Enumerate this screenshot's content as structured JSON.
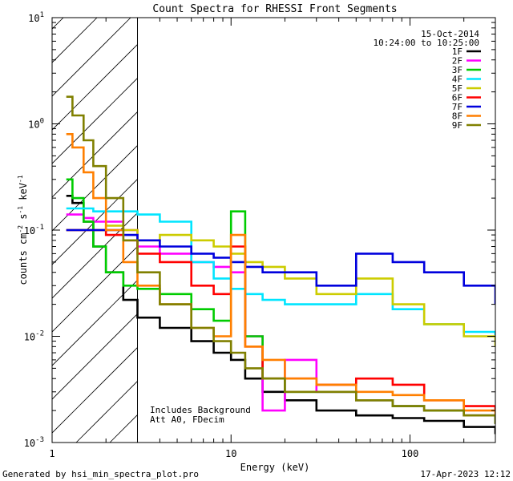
{
  "chart_data": {
    "type": "line",
    "title": "Count Spectra for RHESSI Front Segments",
    "date": "15-Oct-2014",
    "time_range": "10:24:00 to 10:25:00",
    "xlabel": "Energy (keV)",
    "ylabel": "counts cm-2 s-1 keV-1",
    "xscale": "log",
    "yscale": "log",
    "xlim": [
      1,
      300
    ],
    "ylim": [
      0.001,
      10
    ],
    "x_ticks": [
      {
        "value": 1,
        "label": "1"
      },
      {
        "value": 10,
        "label": "10"
      },
      {
        "value": 100,
        "label": "100"
      }
    ],
    "y_ticks": [
      {
        "value": 0.001,
        "mant": "10",
        "exp": "-3"
      },
      {
        "value": 0.01,
        "mant": "10",
        "exp": "-2"
      },
      {
        "value": 0.1,
        "mant": "10",
        "exp": "-1"
      },
      {
        "value": 1,
        "mant": "10",
        "exp": "0"
      },
      {
        "value": 10,
        "mant": "10",
        "exp": "1"
      }
    ],
    "hatched_region": [
      1,
      3
    ],
    "legend_position": "top-right",
    "annotations": [
      "Includes Background",
      "Att A0, FDecim"
    ],
    "series": [
      {
        "name": "1F",
        "color": "#000000",
        "x": [
          1.2,
          1.3,
          1.5,
          1.7,
          2,
          2.5,
          3,
          4,
          6,
          8,
          10,
          12,
          15,
          20,
          30,
          50,
          80,
          120,
          200,
          300
        ],
        "values": [
          0.21,
          0.18,
          0.12,
          0.07,
          0.04,
          0.022,
          0.015,
          0.012,
          0.009,
          0.007,
          0.006,
          0.004,
          0.003,
          0.0025,
          0.002,
          0.0018,
          0.0017,
          0.0016,
          0.0014,
          0.0012
        ]
      },
      {
        "name": "2F",
        "color": "#ff00ff",
        "x": [
          1.2,
          1.3,
          1.5,
          1.7,
          2,
          2.5,
          3,
          4,
          6,
          8,
          10,
          12,
          15,
          20,
          30,
          50,
          80,
          120,
          200,
          300
        ],
        "values": [
          0.14,
          0.14,
          0.13,
          0.12,
          0.12,
          0.1,
          0.07,
          0.06,
          0.05,
          0.045,
          0.04,
          0.01,
          0.002,
          0.006,
          0.003,
          0.0025,
          0.0022,
          0.002,
          0.0018,
          0.0015
        ]
      },
      {
        "name": "3F",
        "color": "#00cc00",
        "x": [
          1.2,
          1.3,
          1.5,
          1.7,
          2,
          2.5,
          3,
          4,
          6,
          8,
          10,
          12,
          15,
          20,
          30,
          50,
          80,
          120,
          200,
          300
        ],
        "values": [
          0.3,
          0.2,
          0.12,
          0.07,
          0.04,
          0.03,
          0.028,
          0.025,
          0.018,
          0.014,
          0.15,
          0.01,
          0.004,
          0.003,
          0.003,
          0.0025,
          0.0022,
          0.002,
          0.0018,
          0.0015
        ]
      },
      {
        "name": "4F",
        "color": "#00e5ff",
        "x": [
          1.2,
          1.3,
          1.5,
          1.7,
          2,
          2.5,
          3,
          4,
          6,
          8,
          10,
          12,
          15,
          20,
          30,
          50,
          80,
          120,
          200,
          300
        ],
        "values": [
          0.16,
          0.16,
          0.16,
          0.15,
          0.15,
          0.15,
          0.14,
          0.12,
          0.05,
          0.035,
          0.028,
          0.025,
          0.022,
          0.02,
          0.02,
          0.025,
          0.018,
          0.013,
          0.011,
          0.01
        ]
      },
      {
        "name": "5F",
        "color": "#cccc00",
        "x": [
          1.2,
          1.3,
          1.5,
          1.7,
          2,
          2.5,
          3,
          4,
          6,
          8,
          10,
          12,
          15,
          20,
          30,
          50,
          80,
          120,
          200,
          300
        ],
        "values": [
          0.1,
          0.1,
          0.1,
          0.1,
          0.11,
          0.1,
          0.08,
          0.09,
          0.08,
          0.07,
          0.06,
          0.05,
          0.045,
          0.035,
          0.025,
          0.035,
          0.02,
          0.013,
          0.01,
          0.008
        ]
      },
      {
        "name": "6F",
        "color": "#ff0000",
        "x": [
          1.2,
          1.3,
          1.5,
          1.7,
          2,
          2.5,
          3,
          4,
          6,
          8,
          10,
          12,
          15,
          20,
          30,
          50,
          80,
          120,
          200,
          300
        ],
        "values": [
          0.1,
          0.1,
          0.1,
          0.1,
          0.09,
          0.08,
          0.06,
          0.05,
          0.03,
          0.025,
          0.07,
          0.008,
          0.004,
          0.004,
          0.0035,
          0.004,
          0.0035,
          0.0025,
          0.0022,
          0.002
        ]
      },
      {
        "name": "7F",
        "color": "#0000dd",
        "x": [
          1.2,
          1.3,
          1.5,
          1.7,
          2,
          2.5,
          3,
          4,
          6,
          8,
          10,
          12,
          15,
          20,
          30,
          50,
          80,
          120,
          200,
          300
        ],
        "values": [
          0.1,
          0.1,
          0.1,
          0.1,
          0.1,
          0.09,
          0.08,
          0.07,
          0.06,
          0.055,
          0.05,
          0.045,
          0.04,
          0.04,
          0.03,
          0.06,
          0.05,
          0.04,
          0.03,
          0.02
        ]
      },
      {
        "name": "8F",
        "color": "#ff7f00",
        "x": [
          1.2,
          1.3,
          1.5,
          1.7,
          2,
          2.5,
          3,
          4,
          6,
          8,
          10,
          12,
          15,
          20,
          30,
          50,
          80,
          120,
          200,
          300
        ],
        "values": [
          0.8,
          0.6,
          0.35,
          0.2,
          0.1,
          0.05,
          0.03,
          0.02,
          0.012,
          0.01,
          0.09,
          0.008,
          0.006,
          0.004,
          0.0035,
          0.003,
          0.0028,
          0.0025,
          0.002,
          0.0018
        ]
      },
      {
        "name": "9F",
        "color": "#808000",
        "x": [
          1.2,
          1.3,
          1.5,
          1.7,
          2,
          2.5,
          3,
          4,
          6,
          8,
          10,
          12,
          15,
          20,
          30,
          50,
          80,
          120,
          200,
          300
        ],
        "values": [
          1.8,
          1.2,
          0.7,
          0.4,
          0.2,
          0.08,
          0.04,
          0.02,
          0.012,
          0.009,
          0.007,
          0.005,
          0.004,
          0.003,
          0.003,
          0.0025,
          0.0022,
          0.002,
          0.0018,
          0.0015
        ]
      }
    ]
  },
  "footer": {
    "generated_by": "Generated by hsi_min_spectra_plot.pro",
    "timestamp": "17-Apr-2023 12:12"
  }
}
